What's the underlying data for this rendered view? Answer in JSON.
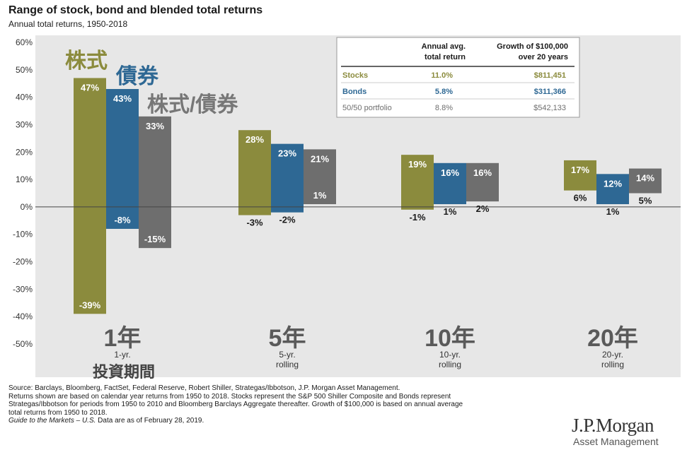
{
  "header": {
    "title": "Range of stock, bond and blended total returns",
    "subtitle": "Annual total returns, 1950-2018"
  },
  "jp_labels": {
    "stocks": "株式",
    "bonds": "債券",
    "blend": "株式/債券",
    "period": "投資期間"
  },
  "table": {
    "header_return": [
      "Annual avg.",
      "total return"
    ],
    "header_growth": [
      "Growth of $100,000",
      "over 20 years"
    ],
    "rows": [
      {
        "name": "Stocks",
        "return": "11.0%",
        "growth": "$811,451",
        "color": "#8b8b3d"
      },
      {
        "name": "Bonds",
        "return": "5.8%",
        "growth": "$311,366",
        "color": "#2e6894"
      },
      {
        "name": "50/50 portfolio",
        "return": "8.8%",
        "growth": "$542,133",
        "color": "#6e6e6e"
      }
    ]
  },
  "chart_data": {
    "type": "bar",
    "subtype": "floating-range",
    "ylim": [
      -50,
      60
    ],
    "yticks": [
      "60%",
      "50%",
      "40%",
      "30%",
      "20%",
      "10%",
      "0%",
      "-10%",
      "-20%",
      "-30%",
      "-40%",
      "-50%"
    ],
    "ytick_values": [
      60,
      50,
      40,
      30,
      20,
      10,
      0,
      -10,
      -20,
      -30,
      -40,
      -50
    ],
    "categories": [
      {
        "big": "1年",
        "label": [
          "1-yr."
        ]
      },
      {
        "big": "5年",
        "label": [
          "5-yr.",
          "rolling"
        ]
      },
      {
        "big": "10年",
        "label": [
          "10-yr.",
          "rolling"
        ]
      },
      {
        "big": "20年",
        "label": [
          "20-yr.",
          "rolling"
        ]
      }
    ],
    "series": [
      {
        "name": "Stocks",
        "color": "#8b8b3d",
        "max": [
          47,
          28,
          19,
          17
        ],
        "min": [
          -39,
          -3,
          -1,
          6
        ],
        "max_labels": [
          "47%",
          "28%",
          "19%",
          "17%"
        ],
        "min_labels": [
          "-39%",
          "-3%",
          "-1%",
          "6%"
        ]
      },
      {
        "name": "Bonds",
        "color": "#2e6894",
        "max": [
          43,
          23,
          16,
          12
        ],
        "min": [
          -8,
          -2,
          1,
          1
        ],
        "max_labels": [
          "43%",
          "23%",
          "16%",
          "12%"
        ],
        "min_labels": [
          "-8%",
          "-2%",
          "1%",
          "1%"
        ]
      },
      {
        "name": "50/50 portfolio",
        "color": "#6e6e6e",
        "max": [
          33,
          21,
          16,
          14
        ],
        "min": [
          -15,
          1,
          2,
          5
        ],
        "max_labels": [
          "33%",
          "21%",
          "16%",
          "14%"
        ],
        "min_labels": [
          "-15%",
          "1%",
          "2%",
          "5%"
        ]
      }
    ]
  },
  "footer": {
    "source_lines": [
      "Source: Barclays, Bloomberg, FactSet, Federal Reserve, Robert Shiller, Strategas/Ibbotson, J.P. Morgan Asset Management.",
      "Returns shown are based on calendar year returns from 1950 to 2018. Stocks represent the S&P 500 Shiller Composite and Bonds represent",
      "Strategas/Ibbotson for periods from 1950 to 2010 and Bloomberg Barclays Aggregate thereafter. Growth of $100,000 is based on annual average",
      "total returns from 1950 to 2018."
    ],
    "guide_italic": "Guide to the Markets – U.S.",
    "guide_rest": " Data are as of February 28, 2019.",
    "logo_main": "J.P.Morgan",
    "logo_sub": "Asset Management"
  }
}
